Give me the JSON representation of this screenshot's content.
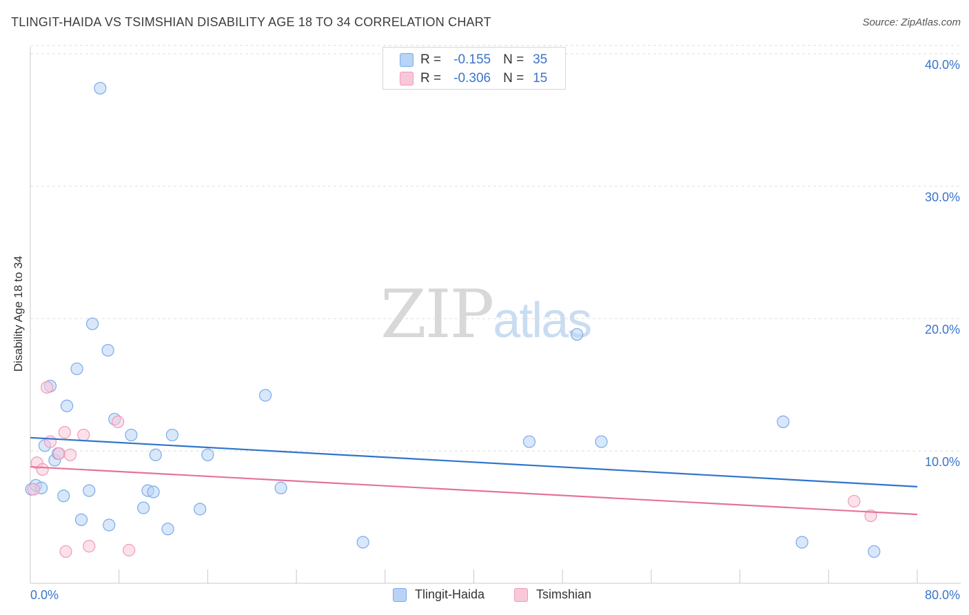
{
  "title": "TLINGIT-HAIDA VS TSIMSHIAN DISABILITY AGE 18 TO 34 CORRELATION CHART",
  "source": "Source: ZipAtlas.com",
  "watermark": {
    "zip": "ZIP",
    "atlas": "atlas"
  },
  "legend_top": {
    "rows": [
      {
        "r_label": "R =",
        "r_value": "-0.155",
        "n_label": "N =",
        "n_value": "35"
      },
      {
        "r_label": "R =",
        "r_value": "-0.306",
        "n_label": "N =",
        "n_value": "15"
      }
    ]
  },
  "colors": {
    "blue_fill": "#b8d3f5",
    "blue_stroke": "#7aaae8",
    "blue_line": "#2f74cc",
    "pink_fill": "#f9c8d8",
    "pink_stroke": "#ef9ab8",
    "pink_line": "#e5729b",
    "tick_label": "#3a74c9",
    "grid": "#dddddd"
  },
  "chart_data": {
    "type": "scatter",
    "title": "TLINGIT-HAIDA VS TSIMSHIAN DISABILITY AGE 18 TO 34 CORRELATION CHART",
    "xlabel": "",
    "ylabel": "Disability Age 18 to 34",
    "xlim": [
      0,
      80
    ],
    "ylim": [
      0,
      40
    ],
    "x_tick_labels": [
      "0.0%",
      "80.0%"
    ],
    "y_ticks": [
      10,
      20,
      30,
      40
    ],
    "y_tick_labels": [
      "10.0%",
      "20.0%",
      "30.0%",
      "40.0%"
    ],
    "grid": true,
    "legend_position": "bottom-center",
    "series": [
      {
        "name": "Tlingit-Haida",
        "color": "#b8d3f5",
        "r": "-0.155",
        "n": "35",
        "trend": [
          [
            0,
            11.0
          ],
          [
            80,
            7.3
          ]
        ],
        "points": [
          [
            0.1,
            7.1
          ],
          [
            0.5,
            7.4
          ],
          [
            1.0,
            7.2
          ],
          [
            1.3,
            10.4
          ],
          [
            1.8,
            14.9
          ],
          [
            2.2,
            9.3
          ],
          [
            2.5,
            9.8
          ],
          [
            3.0,
            6.6
          ],
          [
            3.3,
            13.4
          ],
          [
            4.2,
            16.2
          ],
          [
            4.6,
            4.8
          ],
          [
            5.3,
            7.0
          ],
          [
            5.6,
            19.6
          ],
          [
            6.3,
            37.4
          ],
          [
            7.0,
            17.6
          ],
          [
            7.1,
            4.4
          ],
          [
            7.6,
            12.4
          ],
          [
            9.1,
            11.2
          ],
          [
            10.2,
            5.7
          ],
          [
            10.6,
            7.0
          ],
          [
            11.1,
            6.9
          ],
          [
            11.3,
            9.7
          ],
          [
            12.4,
            4.1
          ],
          [
            12.8,
            11.2
          ],
          [
            15.3,
            5.6
          ],
          [
            16.0,
            9.7
          ],
          [
            21.2,
            14.2
          ],
          [
            22.6,
            7.2
          ],
          [
            30.0,
            3.1
          ],
          [
            45.0,
            10.7
          ],
          [
            49.3,
            18.8
          ],
          [
            51.5,
            10.7
          ],
          [
            67.9,
            12.2
          ],
          [
            69.6,
            3.1
          ],
          [
            76.1,
            2.4
          ]
        ]
      },
      {
        "name": "Tsimshian",
        "color": "#f9c8d8",
        "r": "-0.306",
        "n": "15",
        "trend": [
          [
            0,
            8.8
          ],
          [
            80,
            5.2
          ]
        ],
        "points": [
          [
            0.3,
            7.1
          ],
          [
            0.6,
            9.1
          ],
          [
            1.1,
            8.6
          ],
          [
            1.5,
            14.8
          ],
          [
            1.8,
            10.7
          ],
          [
            2.6,
            9.8
          ],
          [
            3.1,
            11.4
          ],
          [
            3.2,
            2.4
          ],
          [
            3.6,
            9.7
          ],
          [
            4.8,
            11.2
          ],
          [
            5.3,
            2.8
          ],
          [
            7.9,
            12.2
          ],
          [
            8.9,
            2.5
          ],
          [
            74.3,
            6.2
          ],
          [
            75.8,
            5.1
          ]
        ]
      }
    ]
  }
}
